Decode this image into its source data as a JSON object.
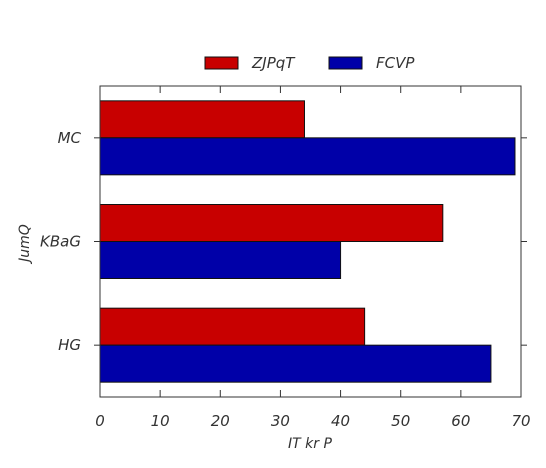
{
  "chart_data": {
    "type": "bar",
    "orientation": "horizontal",
    "categories": [
      "MC",
      "KBaG",
      "HG"
    ],
    "series": [
      {
        "name": "ZJPqT",
        "color": "#c80000",
        "values": [
          34,
          57,
          44
        ]
      },
      {
        "name": "FCVP",
        "color": "#0000a8",
        "values": [
          69,
          40,
          65
        ]
      }
    ],
    "xlabel": "IT kr P",
    "ylabel": "JumQ",
    "xlim": [
      0,
      70
    ],
    "xticks": [
      0,
      10,
      20,
      30,
      40,
      50,
      60,
      70
    ],
    "grid": false,
    "legend_position": "top-center"
  }
}
